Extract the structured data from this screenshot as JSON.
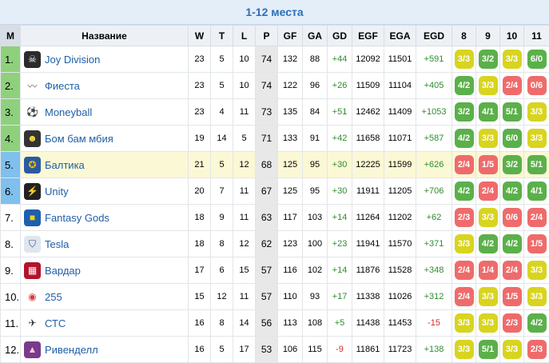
{
  "title": "1-12 места",
  "headers": [
    "М",
    "Название",
    "W",
    "T",
    "L",
    "P",
    "GF",
    "GA",
    "GD",
    "EGF",
    "EGA",
    "EGD",
    "8",
    "9",
    "10",
    "11"
  ],
  "rows": [
    {
      "pos": "1.",
      "name": "Joy Division",
      "logo": "skull-icon",
      "w": "23",
      "t": "5",
      "l": "10",
      "p": "74",
      "gf": "132",
      "ga": "88",
      "gd": "+44",
      "egf": "12092",
      "ega": "11501",
      "egd": "+591",
      "f": [
        [
          "3/3",
          "y"
        ],
        [
          "3/2",
          "g"
        ],
        [
          "3/3",
          "y"
        ],
        [
          "6/0",
          "g"
        ]
      ]
    },
    {
      "pos": "2.",
      "name": "Фиеста",
      "logo": "wings-icon",
      "w": "23",
      "t": "5",
      "l": "10",
      "p": "74",
      "gf": "122",
      "ga": "96",
      "gd": "+26",
      "egf": "11509",
      "ega": "11104",
      "egd": "+405",
      "f": [
        [
          "4/2",
          "g"
        ],
        [
          "3/3",
          "y"
        ],
        [
          "2/4",
          "r"
        ],
        [
          "0/6",
          "r"
        ]
      ]
    },
    {
      "pos": "3.",
      "name": "Moneyball",
      "logo": "ball-icon",
      "w": "23",
      "t": "4",
      "l": "11",
      "p": "73",
      "gf": "135",
      "ga": "84",
      "gd": "+51",
      "egf": "12462",
      "ega": "11409",
      "egd": "+1053",
      "f": [
        [
          "3/2",
          "g"
        ],
        [
          "4/1",
          "g"
        ],
        [
          "5/1",
          "g"
        ],
        [
          "3/3",
          "y"
        ]
      ]
    },
    {
      "pos": "4.",
      "name": "Бом бам мбия",
      "logo": "face-icon",
      "w": "19",
      "t": "14",
      "l": "5",
      "p": "71",
      "gf": "133",
      "ga": "91",
      "gd": "+42",
      "egf": "11658",
      "ega": "11071",
      "egd": "+587",
      "f": [
        [
          "4/2",
          "g"
        ],
        [
          "3/3",
          "y"
        ],
        [
          "6/0",
          "g"
        ],
        [
          "3/3",
          "y"
        ]
      ]
    },
    {
      "pos": "5.",
      "name": "Балтика",
      "logo": "crest-icon",
      "w": "21",
      "t": "5",
      "l": "12",
      "p": "68",
      "gf": "125",
      "ga": "95",
      "gd": "+30",
      "egf": "12225",
      "ega": "11599",
      "egd": "+626",
      "f": [
        [
          "2/4",
          "r"
        ],
        [
          "1/5",
          "r"
        ],
        [
          "3/2",
          "g"
        ],
        [
          "5/1",
          "g"
        ]
      ]
    },
    {
      "pos": "6.",
      "name": "Unity",
      "logo": "lightning-icon",
      "w": "20",
      "t": "7",
      "l": "11",
      "p": "67",
      "gf": "125",
      "ga": "95",
      "gd": "+30",
      "egf": "11911",
      "ega": "11205",
      "egd": "+706",
      "f": [
        [
          "4/2",
          "g"
        ],
        [
          "2/4",
          "r"
        ],
        [
          "4/2",
          "g"
        ],
        [
          "4/1",
          "g"
        ]
      ]
    },
    {
      "pos": "7.",
      "name": "Fantasy Gods",
      "logo": "stop-sign-icon",
      "w": "18",
      "t": "9",
      "l": "11",
      "p": "63",
      "gf": "117",
      "ga": "103",
      "gd": "+14",
      "egf": "11264",
      "ega": "11202",
      "egd": "+62",
      "f": [
        [
          "2/3",
          "r"
        ],
        [
          "3/3",
          "y"
        ],
        [
          "0/6",
          "r"
        ],
        [
          "2/4",
          "r"
        ]
      ]
    },
    {
      "pos": "8.",
      "name": "Tesla",
      "logo": "shield-icon",
      "w": "18",
      "t": "8",
      "l": "12",
      "p": "62",
      "gf": "123",
      "ga": "100",
      "gd": "+23",
      "egf": "11941",
      "ega": "11570",
      "egd": "+371",
      "f": [
        [
          "3/3",
          "y"
        ],
        [
          "4/2",
          "g"
        ],
        [
          "4/2",
          "g"
        ],
        [
          "1/5",
          "r"
        ]
      ]
    },
    {
      "pos": "9.",
      "name": "Вардар",
      "logo": "vardar-icon",
      "w": "17",
      "t": "6",
      "l": "15",
      "p": "57",
      "gf": "116",
      "ga": "102",
      "gd": "+14",
      "egf": "11876",
      "ega": "11528",
      "egd": "+348",
      "f": [
        [
          "2/4",
          "r"
        ],
        [
          "1/4",
          "r"
        ],
        [
          "2/4",
          "r"
        ],
        [
          "3/3",
          "y"
        ]
      ]
    },
    {
      "pos": "10.",
      "name": "255",
      "logo": "logo-255-icon",
      "w": "15",
      "t": "12",
      "l": "11",
      "p": "57",
      "gf": "110",
      "ga": "93",
      "gd": "+17",
      "egf": "11338",
      "ega": "11026",
      "egd": "+312",
      "f": [
        [
          "2/4",
          "r"
        ],
        [
          "3/3",
          "y"
        ],
        [
          "1/5",
          "r"
        ],
        [
          "3/3",
          "y"
        ]
      ]
    },
    {
      "pos": "11.",
      "name": "СТС",
      "logo": "runner-icon",
      "w": "16",
      "t": "8",
      "l": "14",
      "p": "56",
      "gf": "113",
      "ga": "108",
      "gd": "+5",
      "egf": "11438",
      "ega": "11453",
      "egd": "-15",
      "f": [
        [
          "3/3",
          "y"
        ],
        [
          "3/3",
          "y"
        ],
        [
          "2/3",
          "r"
        ],
        [
          "4/2",
          "g"
        ]
      ]
    },
    {
      "pos": "12.",
      "name": "Ривенделл",
      "logo": "landscape-icon",
      "w": "16",
      "t": "5",
      "l": "17",
      "p": "53",
      "gf": "106",
      "ga": "115",
      "gd": "-9",
      "egf": "11861",
      "ega": "11723",
      "egd": "+138",
      "f": [
        [
          "3/3",
          "y"
        ],
        [
          "5/1",
          "g"
        ],
        [
          "3/3",
          "y"
        ],
        [
          "2/3",
          "r"
        ]
      ]
    }
  ]
}
